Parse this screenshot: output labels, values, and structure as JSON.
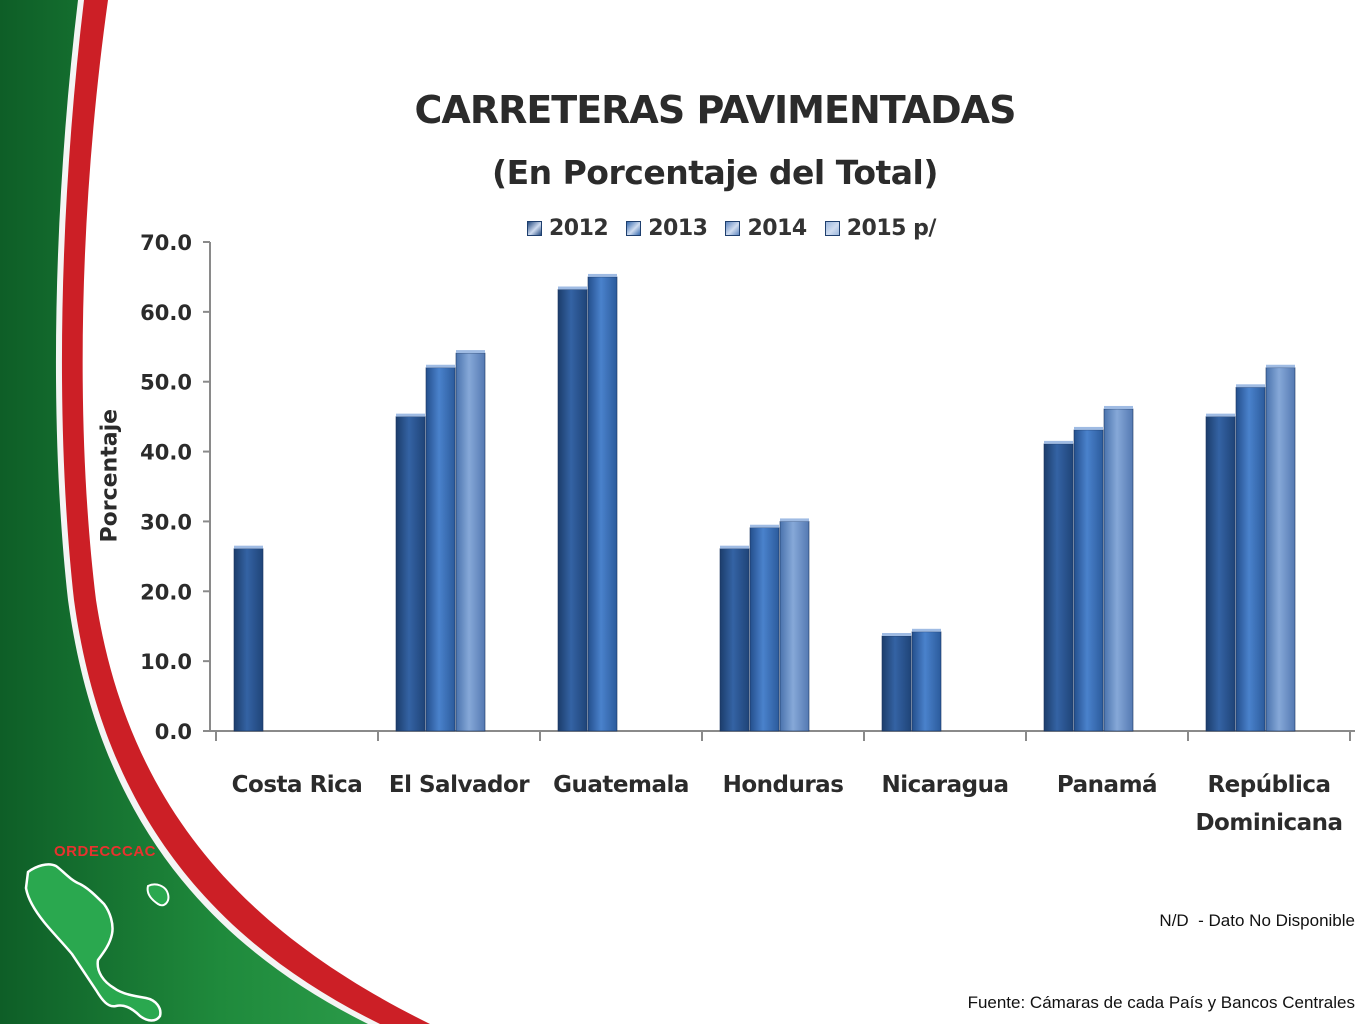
{
  "brand": {
    "name": "ORDECCCAC"
  },
  "footer": {
    "note": "N/D  - Dato No Disponible",
    "source": "Fuente: Cámaras de cada País y Bancos Centrales"
  },
  "colors": {
    "green": "#1f8a3c",
    "red": "#cc1f26",
    "series": [
      "#2a5590",
      "#3a6fb8",
      "#5b86c0",
      "#8aaad4"
    ]
  },
  "chart_data": {
    "type": "bar",
    "title": "CARRETERAS PAVIMENTADAS",
    "subtitle": "(En Porcentaje del Total)",
    "xlabel": "",
    "ylabel": "Porcentaje",
    "ylim": [
      0,
      70
    ],
    "yticks": [
      "0.0",
      "10.0",
      "20.0",
      "30.0",
      "40.0",
      "50.0",
      "60.0",
      "70.0"
    ],
    "legend_position": "top",
    "grid": false,
    "categories": [
      [
        "Costa Rica"
      ],
      [
        "El Salvador"
      ],
      [
        "Guatemala"
      ],
      [
        "Honduras"
      ],
      [
        "Nicaragua"
      ],
      [
        "Panamá"
      ],
      [
        "República",
        "Dominicana"
      ]
    ],
    "series": [
      {
        "name": "2012",
        "values": [
          26.1,
          45.0,
          63.2,
          26.1,
          13.6,
          41.1,
          45.0
        ]
      },
      {
        "name": "2013",
        "values": [
          null,
          52.0,
          65.0,
          29.1,
          14.2,
          43.1,
          49.2
        ]
      },
      {
        "name": "2014",
        "values": [
          null,
          54.1,
          null,
          30.0,
          null,
          46.1,
          52.0
        ]
      },
      {
        "name": "2015 p/",
        "values": [
          null,
          null,
          null,
          null,
          null,
          null,
          null
        ]
      }
    ]
  }
}
